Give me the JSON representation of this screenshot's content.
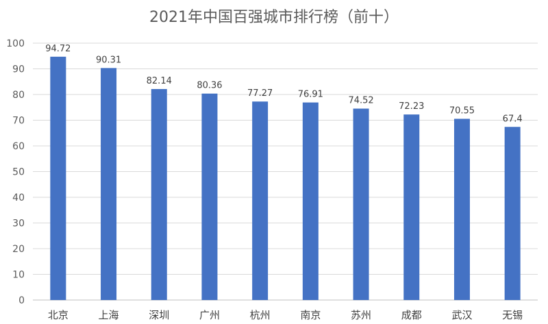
{
  "chart_data": {
    "type": "bar",
    "title": "2021年中国百强城市排行榜（前十）",
    "categories": [
      "北京",
      "上海",
      "深圳",
      "广州",
      "杭州",
      "南京",
      "苏州",
      "成都",
      "武汉",
      "无锡"
    ],
    "values": [
      94.72,
      90.31,
      82.14,
      80.36,
      77.27,
      76.91,
      74.52,
      72.23,
      70.55,
      67.4
    ],
    "data_labels": [
      "94.72",
      "90.31",
      "82.14",
      "80.36",
      "77.27",
      "76.91",
      "74.52",
      "72.23",
      "70.55",
      "67.4"
    ],
    "ylim": [
      0,
      100
    ],
    "yticks": [
      "0",
      "10",
      "20",
      "30",
      "40",
      "50",
      "60",
      "70",
      "80",
      "90",
      "100"
    ],
    "grid": true,
    "legend": "none",
    "bar_color": "#4472c4"
  }
}
